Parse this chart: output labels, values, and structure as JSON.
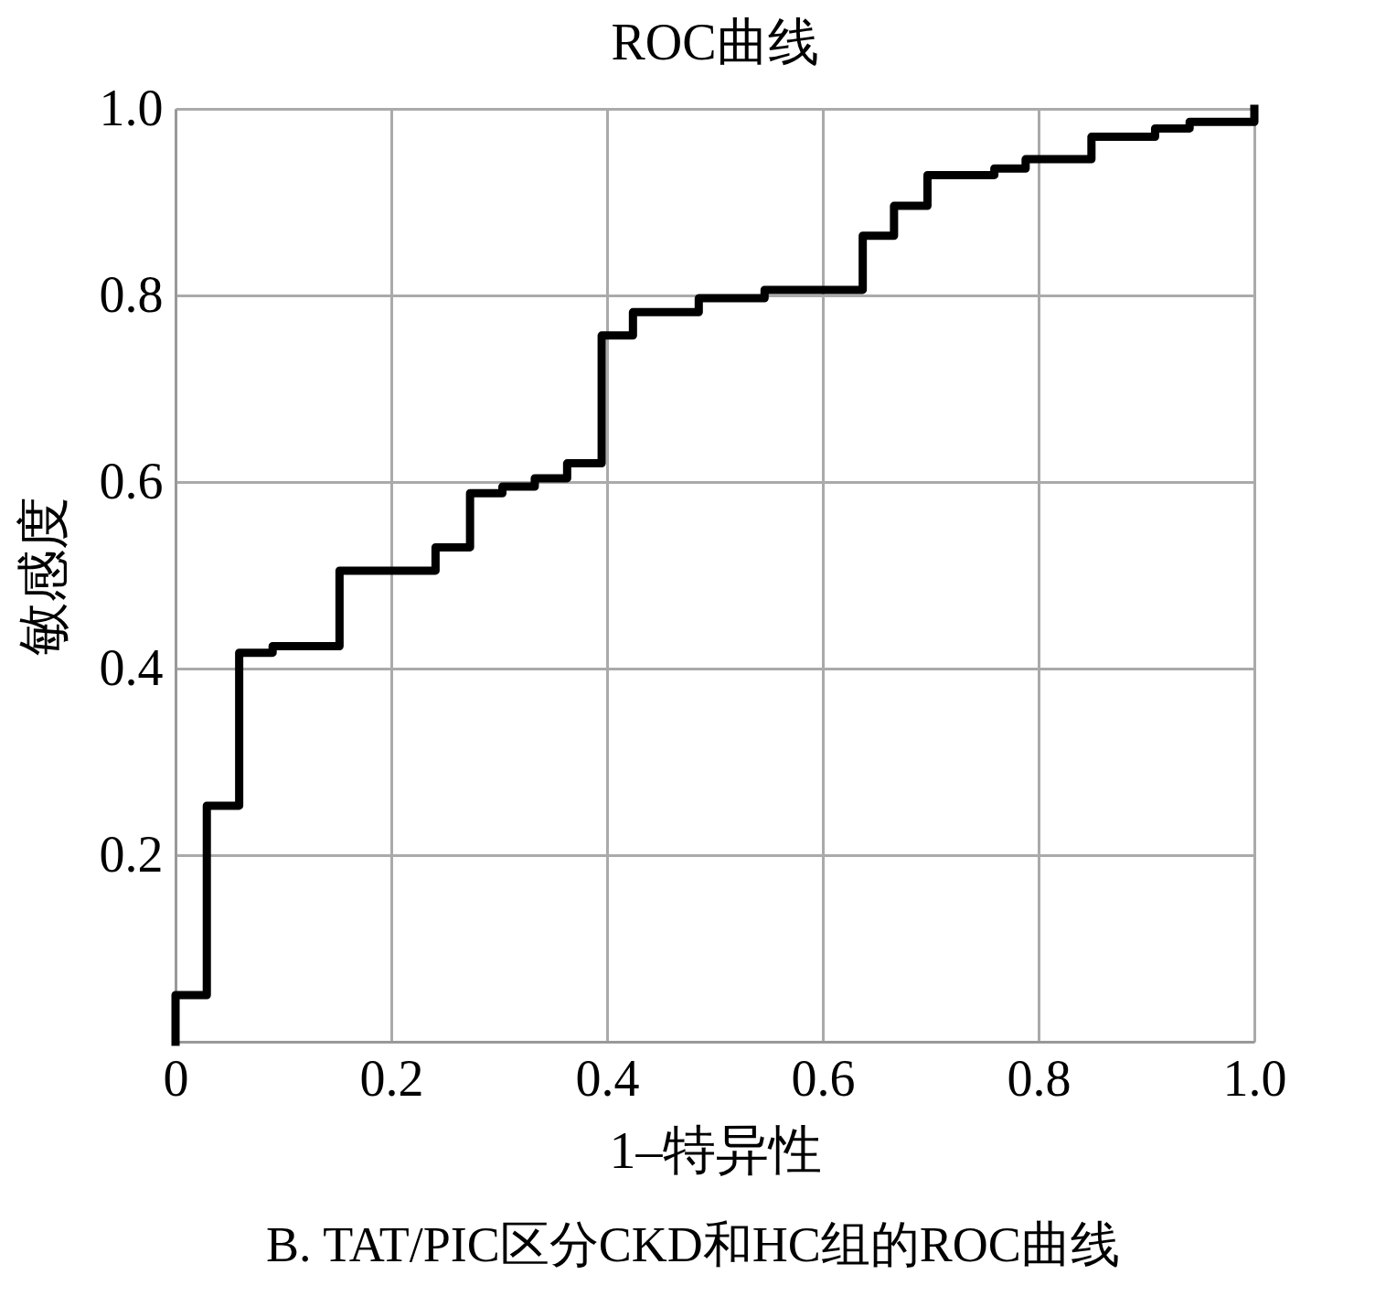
{
  "chart_data": {
    "type": "step",
    "title": "ROC曲线",
    "xlabel": "1–特异性",
    "ylabel": "敏感度",
    "annotations": [
      "B. TAT/PIC区分CKD和HC组的ROC曲线"
    ],
    "x": [
      0,
      0,
      0.029,
      0.059,
      0.09,
      0.152,
      0.241,
      0.273,
      0.303,
      0.333,
      0.363,
      0.395,
      0.424,
      0.485,
      0.546,
      0.637,
      0.666,
      0.697,
      0.759,
      0.788,
      0.849,
      0.908,
      0.94,
      1.0
    ],
    "series": [
      {
        "color": "#000000",
        "values": [
          0,
          0.05,
          0.253,
          0.417,
          0.424,
          0.505,
          0.53,
          0.588,
          0.595,
          0.604,
          0.62,
          0.757,
          0.782,
          0.797,
          0.806,
          0.864,
          0.896,
          0.929,
          0.936,
          0.946,
          0.97,
          0.979,
          0.986,
          1.0
        ]
      }
    ],
    "xlim": [
      0,
      1
    ],
    "ylim": [
      0,
      1
    ],
    "xticks": [
      0,
      0.2,
      0.4,
      0.6,
      0.8,
      {
        "value": 1,
        "label": "1.0"
      }
    ],
    "yticks": [
      0.2,
      0.4,
      0.6,
      0.8,
      {
        "value": 1,
        "label": "1.0"
      }
    ],
    "grid": true,
    "marker": "none",
    "line_style": "solid"
  }
}
